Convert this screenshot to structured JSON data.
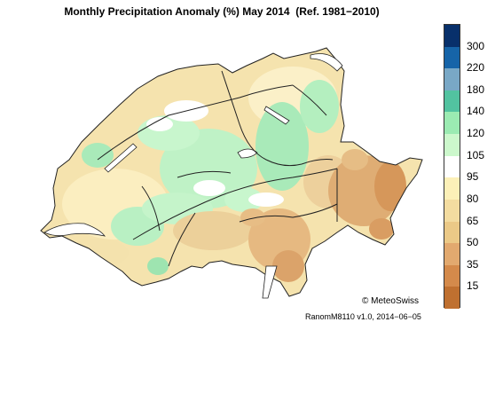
{
  "title": "Monthly Precipitation Anomaly (%) May 2014  (Ref. 1981−2010)",
  "legend": {
    "tick_labels": [
      "300",
      "220",
      "180",
      "140",
      "120",
      "105",
      "95",
      "80",
      "65",
      "50",
      "35",
      "15"
    ],
    "colors": [
      "#08306b",
      "#1664a8",
      "#79a8c6",
      "#52c3a0",
      "#9bebb2",
      "#ccf8cc",
      "#ffffff",
      "#fcf0b8",
      "#f3dca0",
      "#ebc987",
      "#e2a96f",
      "#d48a4b",
      "#bf7030"
    ]
  },
  "map": {
    "region": "Switzerland",
    "dominant_anomaly_colors": {
      "dry_southeast": "#dca672",
      "near_normal": "#f2dfa6",
      "wet_central": "#a9eab9"
    }
  },
  "copyright": "© MeteoSwiss",
  "version": "RanomM8110 v1.0, 2014−06−05"
}
